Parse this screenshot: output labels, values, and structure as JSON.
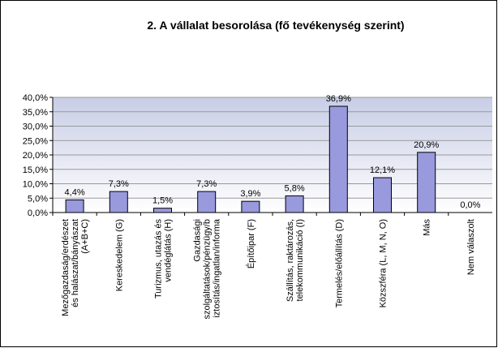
{
  "chart_data": {
    "type": "bar",
    "title": "2. A vállalat besorolása (fő tevékenység szerint)",
    "categories": [
      [
        "Mezőgazdaság/erdészet",
        "és halászat/bányászat",
        "(A+B+C)"
      ],
      [
        "Kereskedelem (G)"
      ],
      [
        "Turizmus, utazás és",
        "vendéglátás (H)"
      ],
      [
        "Gazdasági",
        "szolgáltatások/pénzügy/b",
        "iztosítás/ingatlan/informa"
      ],
      [
        "Építőipar (F)"
      ],
      [
        "Szállítás, raktározás,",
        "telekommunikáció (I)"
      ],
      [
        "Termelés/előállítás (D)"
      ],
      [
        "Közszféra (L, M, N, O)"
      ],
      [
        "Más"
      ],
      [
        "Nem válaszolt"
      ]
    ],
    "values": [
      4.4,
      7.3,
      1.5,
      7.3,
      3.9,
      5.8,
      36.9,
      12.1,
      20.9,
      0.0
    ],
    "value_labels": [
      "4,4%",
      "7,3%",
      "1,5%",
      "7,3%",
      "3,9%",
      "5,8%",
      "36,9%",
      "12,1%",
      "20,9%",
      "0,0%"
    ],
    "color": "#9999dd",
    "ylim": [
      0,
      40
    ],
    "yticks": [
      {
        "value": 0,
        "label": "0,0%"
      },
      {
        "value": 5,
        "label": "5,0%"
      },
      {
        "value": 10,
        "label": "10,0%"
      },
      {
        "value": 15,
        "label": "15,0%"
      },
      {
        "value": 20,
        "label": "20,0%"
      },
      {
        "value": 25,
        "label": "25,0%"
      },
      {
        "value": 30,
        "label": "30,0%"
      },
      {
        "value": 35,
        "label": "35,0%"
      },
      {
        "value": 40,
        "label": "40,0%"
      }
    ],
    "grid": true
  }
}
